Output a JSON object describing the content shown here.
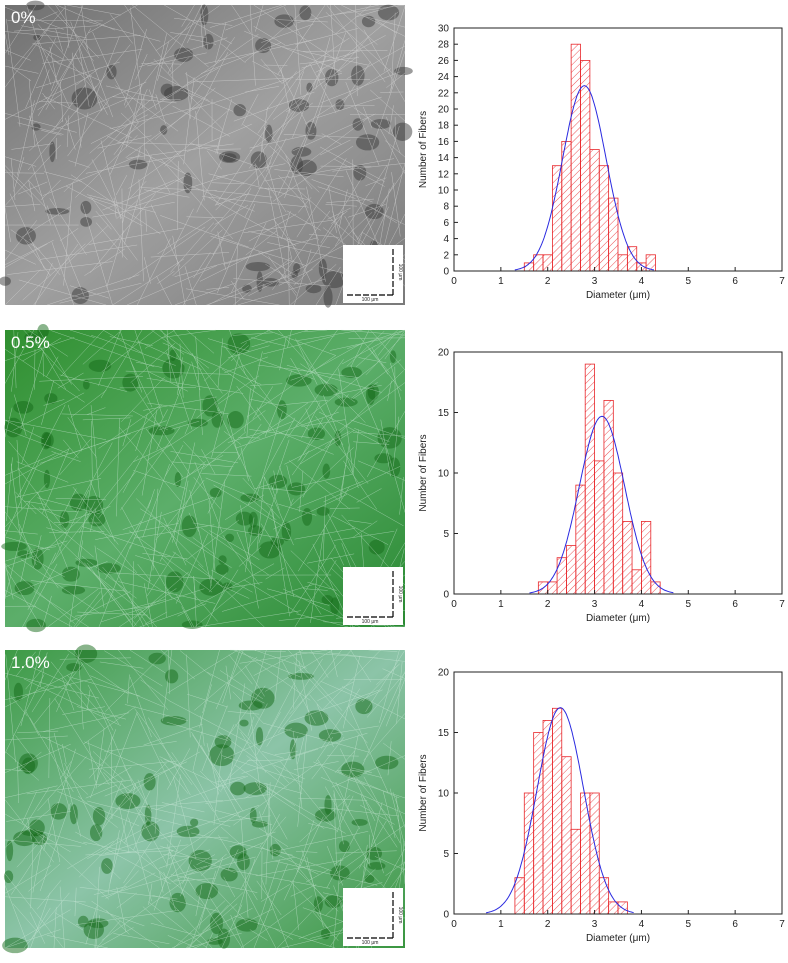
{
  "panels": [
    {
      "label": "0%",
      "scale_label": "100 μm"
    },
    {
      "label": "0.5%",
      "scale_label": "100 μm"
    },
    {
      "label": "1.0%",
      "scale_label": "100 μm"
    }
  ],
  "chart_data": [
    {
      "type": "histogram",
      "xlabel": "Diameter (μm)",
      "ylabel": "Number of Fibers",
      "bins": [
        1.5,
        1.7,
        1.9,
        2.1,
        2.3,
        2.5,
        2.7,
        2.9,
        3.1,
        3.3,
        3.5,
        3.7,
        3.9,
        4.1,
        4.3
      ],
      "values": [
        1,
        2,
        2,
        13,
        16,
        28,
        26,
        15,
        13,
        9,
        2,
        3,
        1,
        2
      ],
      "color": "#e8262a",
      "fit_color": "#2a2ae0",
      "xlim": [
        0,
        7
      ],
      "xticks": [
        0,
        1,
        2,
        3,
        4,
        5,
        6,
        7
      ],
      "ylim": [
        0,
        30
      ],
      "yticks": [
        0,
        2,
        4,
        6,
        8,
        10,
        12,
        14,
        16,
        18,
        20,
        22,
        24,
        26,
        28,
        30
      ]
    },
    {
      "type": "histogram",
      "xlabel": "Diameter (μm)",
      "ylabel": "Number of Fibers",
      "bins": [
        1.8,
        2.0,
        2.2,
        2.4,
        2.6,
        2.8,
        3.0,
        3.2,
        3.4,
        3.6,
        3.8,
        4.0,
        4.2,
        4.4
      ],
      "values": [
        1,
        1,
        3,
        4,
        9,
        19,
        11,
        16,
        10,
        6,
        2,
        6,
        1
      ],
      "color": "#e8262a",
      "fit_color": "#2a2ae0",
      "xlim": [
        0,
        7
      ],
      "xticks": [
        0,
        1,
        2,
        3,
        4,
        5,
        6,
        7
      ],
      "ylim": [
        0,
        20
      ],
      "yticks": [
        0,
        5,
        10,
        15,
        20
      ]
    },
    {
      "type": "histogram",
      "xlabel": "Diameter (μm)",
      "ylabel": "Number of Fibers",
      "bins": [
        1.3,
        1.5,
        1.7,
        1.9,
        2.1,
        2.3,
        2.5,
        2.7,
        2.9,
        3.1,
        3.3,
        3.5,
        3.7
      ],
      "values": [
        3,
        10,
        15,
        16,
        17,
        13,
        7,
        10,
        10,
        3,
        1,
        1
      ],
      "color": "#e8262a",
      "fit_color": "#2a2ae0",
      "xlim": [
        0,
        7
      ],
      "xticks": [
        0,
        1,
        2,
        3,
        4,
        5,
        6,
        7
      ],
      "ylim": [
        0,
        20
      ],
      "yticks": [
        0,
        5,
        10,
        15,
        20
      ]
    }
  ]
}
